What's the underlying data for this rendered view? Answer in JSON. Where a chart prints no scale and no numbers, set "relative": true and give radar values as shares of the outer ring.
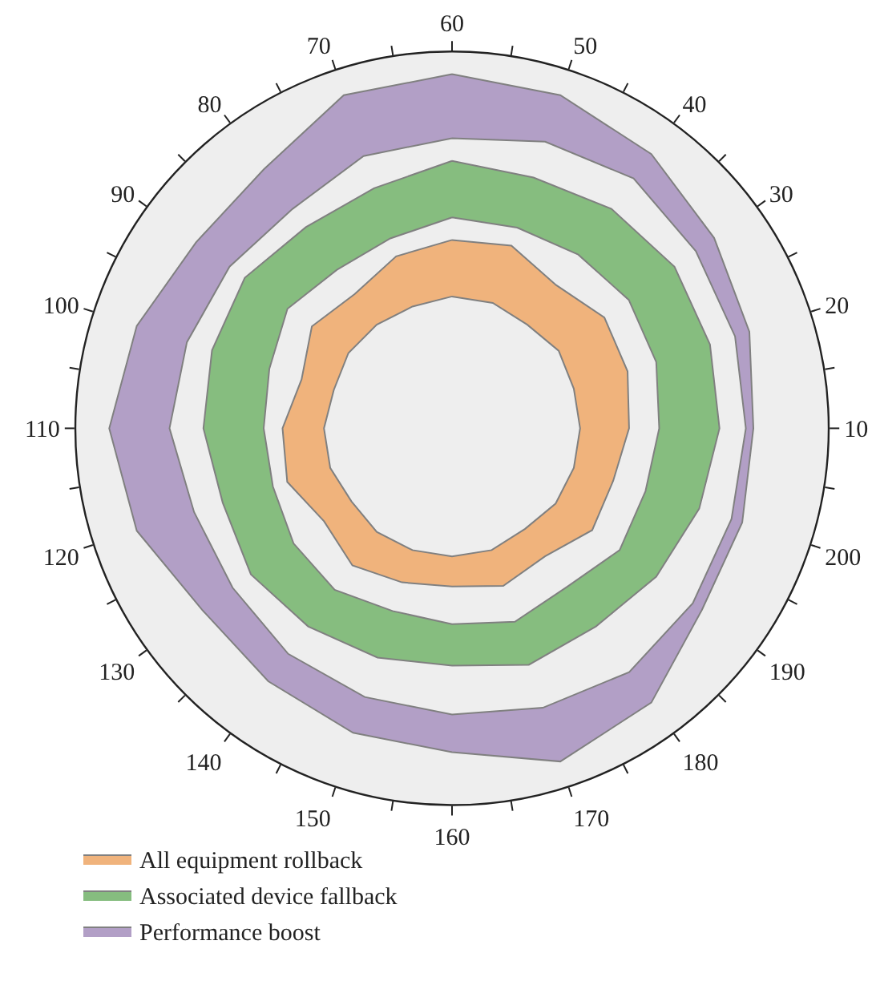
{
  "chart_data": {
    "type": "radar",
    "relative": true,
    "legend": "bottom left",
    "categories": [
      "60",
      "50",
      "40",
      "30",
      "20",
      "10",
      "200",
      "190",
      "180",
      "170",
      "160",
      "150",
      "140",
      "130",
      "120",
      "110",
      "100",
      "90",
      "80",
      "70"
    ],
    "series": [
      {
        "name": "Performance boost",
        "color": "#b29fc6",
        "values": [
          0.94,
          0.93,
          0.9,
          0.86,
          0.83,
          0.8,
          0.81,
          0.82,
          0.9,
          0.93,
          0.86,
          0.85,
          0.83,
          0.82,
          0.88,
          0.91,
          0.88,
          0.84,
          0.85,
          0.93
        ]
      },
      {
        "color": "#eeeeee",
        "values": [
          0.77,
          0.8,
          0.82,
          0.8,
          0.79,
          0.78,
          0.78,
          0.79,
          0.8,
          0.78,
          0.76,
          0.75,
          0.74,
          0.72,
          0.72,
          0.75,
          0.74,
          0.73,
          0.72,
          0.76
        ]
      },
      {
        "name": "Associated device fallback",
        "color": "#86bd7f",
        "values": [
          0.71,
          0.7,
          0.72,
          0.73,
          0.72,
          0.71,
          0.69,
          0.67,
          0.65,
          0.66,
          0.63,
          0.64,
          0.65,
          0.66,
          0.64,
          0.66,
          0.67,
          0.68,
          0.66,
          0.67
        ]
      },
      {
        "color": "#eeeeee",
        "values": [
          0.56,
          0.56,
          0.57,
          0.58,
          0.57,
          0.55,
          0.54,
          0.55,
          0.52,
          0.54,
          0.52,
          0.51,
          0.53,
          0.52,
          0.5,
          0.5,
          0.51,
          0.54,
          0.52,
          0.53
        ]
      },
      {
        "name": "All equipment rollback",
        "color": "#f0b37c",
        "values": [
          0.5,
          0.51,
          0.47,
          0.5,
          0.49,
          0.47,
          0.45,
          0.46,
          0.42,
          0.44,
          0.42,
          0.43,
          0.45,
          0.42,
          0.46,
          0.45,
          0.42,
          0.46,
          0.44,
          0.48
        ]
      },
      {
        "color": "#eeeeee",
        "values": [
          0.35,
          0.35,
          0.34,
          0.35,
          0.34,
          0.34,
          0.34,
          0.34,
          0.33,
          0.34,
          0.34,
          0.34,
          0.34,
          0.33,
          0.34,
          0.34,
          0.33,
          0.34,
          0.34,
          0.34
        ]
      }
    ]
  }
}
